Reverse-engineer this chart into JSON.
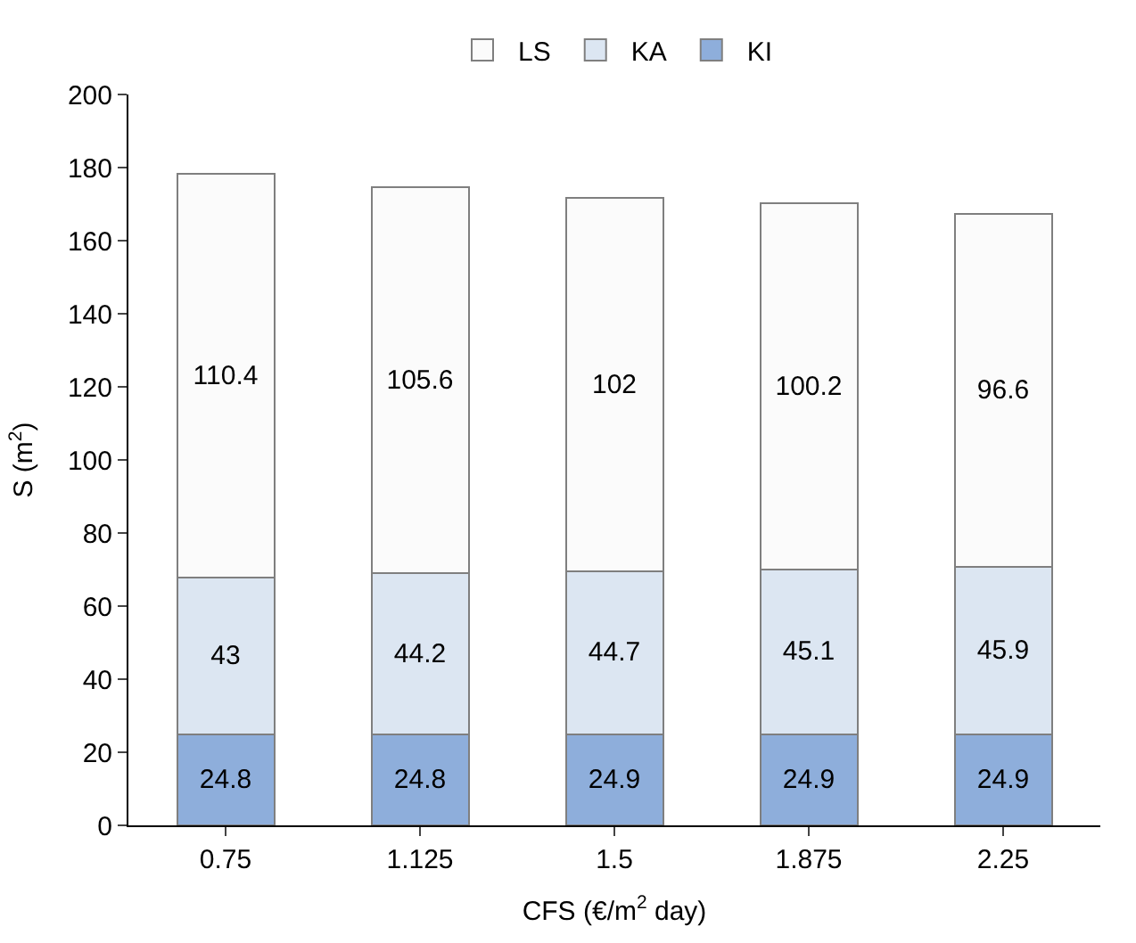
{
  "chart_data": {
    "type": "bar",
    "stacked": true,
    "xlabel": "CFS (€/m$^{2}$ day)",
    "ylabel": "S (m$^{2}$)",
    "categories": [
      "0.75",
      "1.125",
      "1.5",
      "1.875",
      "2.25"
    ],
    "series": [
      {
        "name": "KI",
        "color": "#8eaedb",
        "values": [
          24.8,
          24.8,
          24.9,
          24.9,
          24.9
        ]
      },
      {
        "name": "KA",
        "color": "#dce6f2",
        "values": [
          43,
          44.2,
          44.7,
          45.1,
          45.9
        ]
      },
      {
        "name": "LS",
        "color": "#fbfbfb",
        "values": [
          110.4,
          105.6,
          102,
          100.2,
          96.6
        ]
      }
    ],
    "ylim": [
      0,
      200
    ],
    "yticks": [
      0,
      20,
      40,
      60,
      80,
      100,
      120,
      140,
      160,
      180,
      200
    ],
    "data_labels": true,
    "legend": "top"
  }
}
